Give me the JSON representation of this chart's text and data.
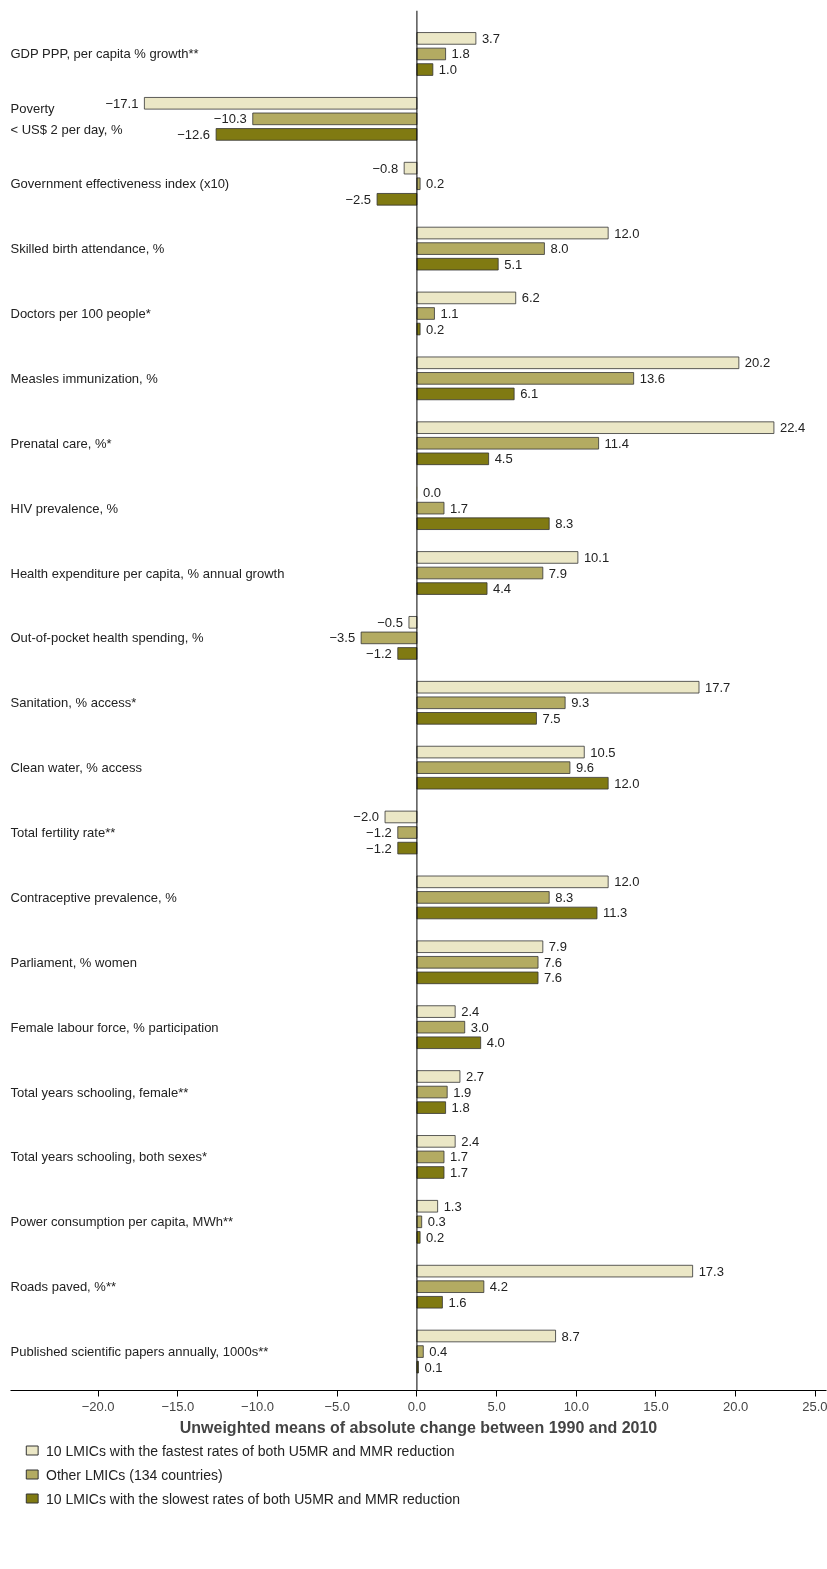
{
  "chart_data": {
    "type": "bar",
    "orientation": "horizontal",
    "xlabel": "Unweighted means of absolute change between 1990 and 2010",
    "categories": [
      "GDP PPP, per capita % growth**",
      "Poverty\n< US$ 2 per day, %",
      "Government effectiveness index (x10)",
      "Skilled birth attendance, %",
      "Doctors per 100 people*",
      "Measles immunization, %",
      "Prenatal care, %*",
      "HIV prevalence, %",
      "Health expenditure per capita, % annual growth",
      "Out-of-pocket health spending, %",
      "Sanitation, % access*",
      "Clean water, % access",
      "Total fertility rate**",
      "Contraceptive prevalence, %",
      "Parliament, % women",
      "Female labour force, % participation",
      "Total years schooling, female**",
      "Total years schooling, both sexes*",
      "Power consumption per capita, MWh**",
      "Roads paved, %**",
      "Published scientific papers annually, 1000s**"
    ],
    "series": [
      {
        "name": "10 LMICs with the fastest rates of both U5MR and MMR reduction",
        "color": "#ebe7c6",
        "values": [
          3.7,
          -17.1,
          -0.8,
          12.0,
          6.2,
          20.2,
          22.4,
          0.0,
          10.1,
          -0.5,
          17.7,
          10.5,
          -2.0,
          12.0,
          7.9,
          2.4,
          2.7,
          2.4,
          1.3,
          17.3,
          8.7
        ],
        "value_labels": [
          "3.7",
          "−17.1",
          "−0.8",
          "12.0",
          "6.2",
          "20.2",
          "22.4",
          "0.0",
          "10.1",
          "−0.5",
          "17.7",
          "10.5",
          "−2.0",
          "12.0",
          "7.9",
          "2.4",
          "2.7",
          "2.4",
          "1.3",
          "17.3",
          "8.7"
        ]
      },
      {
        "name": "Other LMICs (134 countries)",
        "color": "#b3ab62",
        "values": [
          1.8,
          -10.3,
          0.2,
          8.0,
          1.1,
          13.6,
          11.4,
          1.7,
          7.9,
          -3.5,
          9.3,
          9.6,
          -1.2,
          8.3,
          7.6,
          3.0,
          1.9,
          1.7,
          0.3,
          4.2,
          0.4
        ],
        "value_labels": [
          "1.8",
          "−10.3",
          "0.2",
          "8.0",
          "1.1",
          "13.6",
          "11.4",
          "1.7",
          "7.9",
          "−3.5",
          "9.3",
          "9.6",
          "−1.2",
          "8.3",
          "7.6",
          "3.0",
          "1.9",
          "1.7",
          "0.3",
          "4.2",
          "0.4"
        ]
      },
      {
        "name": "10 LMICs with the slowest rates of both U5MR and MMR reduction",
        "color": "#807a12",
        "values": [
          1.0,
          -12.6,
          -2.5,
          5.1,
          0.2,
          6.1,
          4.5,
          8.3,
          4.4,
          -1.2,
          7.5,
          12.0,
          -1.2,
          11.3,
          7.6,
          4.0,
          1.8,
          1.7,
          0.2,
          1.6,
          0.1
        ],
        "value_labels": [
          "1.0",
          "−12.6",
          "−2.5",
          "5.1",
          "0.2",
          "6.1",
          "4.5",
          "8.3",
          "4.4",
          "−1.2",
          "7.5",
          "12.0",
          "−1.2",
          "11.3",
          "7.6",
          "4.0",
          "1.8",
          "1.7",
          "0.2",
          "1.6",
          "0.1"
        ]
      }
    ],
    "xlim": [
      -25.5,
      25.7
    ],
    "xticks": [
      {
        "value": -20,
        "label": "−20.0"
      },
      {
        "value": -15,
        "label": "−15.0"
      },
      {
        "value": -10,
        "label": "−10.0"
      },
      {
        "value": -5,
        "label": "−5.0"
      },
      {
        "value": 0,
        "label": "0.0"
      },
      {
        "value": 5,
        "label": "5.0"
      },
      {
        "value": 10,
        "label": "10.0"
      },
      {
        "value": 15,
        "label": "15.0"
      },
      {
        "value": 20,
        "label": "20.0"
      },
      {
        "value": 25,
        "label": "25.0"
      }
    ],
    "legend": "bottom"
  }
}
